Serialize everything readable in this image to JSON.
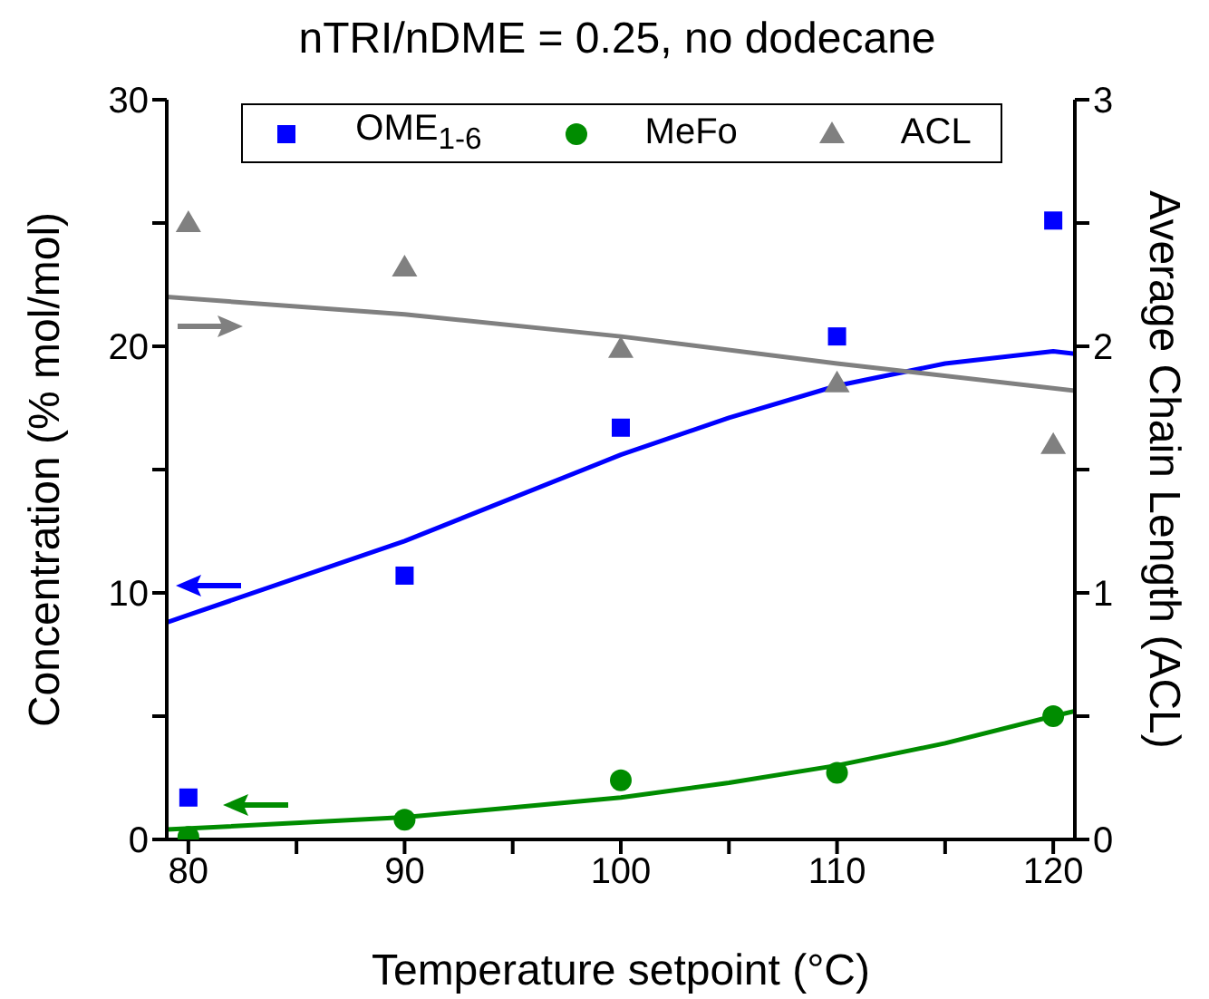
{
  "chart_data": {
    "type": "scatter",
    "title": "nTRI/nDME = 0.25, no dodecane",
    "xlabel": "Temperature setpoint (°C)",
    "ylabel": "Concentration (% mol/mol)",
    "y2label": "Average Chain Length (ACL)",
    "xlim": [
      79,
      121
    ],
    "xticks": [
      80,
      {
        "value": 85,
        "label": null
      },
      90,
      {
        "value": 95,
        "label": null
      },
      100,
      {
        "value": 105,
        "label": null
      },
      110,
      {
        "value": 115,
        "label": null
      },
      120
    ],
    "ylim": [
      0,
      30
    ],
    "yticks": [
      0,
      {
        "value": 5,
        "label": null
      },
      10,
      {
        "value": 15,
        "label": null
      },
      20,
      {
        "value": 25,
        "label": null
      },
      30
    ],
    "y2lim": [
      0,
      3
    ],
    "y2ticks": [
      0,
      {
        "value": 0.5,
        "label": null
      },
      1,
      {
        "value": 1.5,
        "label": null
      },
      2,
      {
        "value": 2.5,
        "label": null
      },
      3
    ],
    "grid": false,
    "legend": "top",
    "series": [
      {
        "name": "OME$_{1-6}$",
        "color": "#0000ff",
        "marker": "square",
        "x": [
          80,
          90,
          100,
          110,
          120
        ],
        "values": [
          1.7,
          10.7,
          16.7,
          20.4,
          25.1
        ]
      },
      {
        "name": "MeFo",
        "color": "#008c00",
        "marker": "circle",
        "x": [
          80,
          90,
          100,
          110,
          120
        ],
        "values": [
          0.1,
          0.8,
          2.4,
          2.7,
          5.0
        ]
      },
      {
        "name": "ACL",
        "color": "#808080",
        "marker": "triangle",
        "axis": "y2",
        "x": [
          80,
          90,
          100,
          110,
          120
        ],
        "values": [
          2.5,
          2.32,
          1.99,
          1.85,
          1.6
        ]
      },
      {
        "type": "line",
        "color": "#0000ff",
        "x": [
          79,
          80,
          90,
          100,
          105,
          110,
          115,
          120,
          121
        ],
        "values": [
          8.8,
          9.1,
          12.1,
          15.6,
          17.1,
          18.4,
          19.3,
          19.8,
          19.7
        ]
      },
      {
        "type": "line",
        "color": "#008c00",
        "x": [
          79,
          90,
          95,
          100,
          105,
          110,
          115,
          120,
          121
        ],
        "values": [
          0.4,
          0.9,
          1.3,
          1.7,
          2.3,
          3.0,
          3.9,
          5.0,
          5.2
        ]
      },
      {
        "type": "line",
        "color": "#808080",
        "axis": "y2",
        "x": [
          79,
          90,
          100,
          110,
          121
        ],
        "values": [
          2.2,
          2.13,
          2.04,
          1.93,
          1.82
        ]
      }
    ]
  }
}
